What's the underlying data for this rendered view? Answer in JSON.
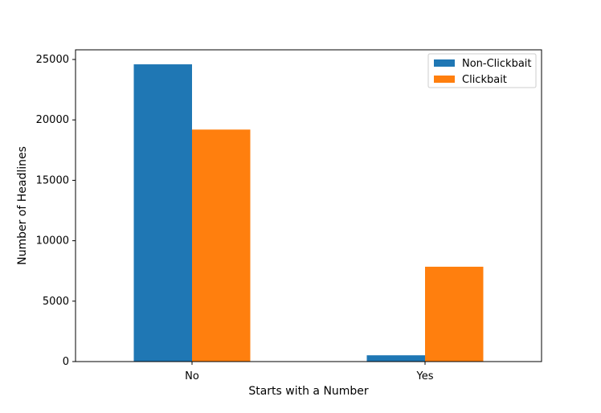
{
  "chart_data": {
    "type": "bar",
    "title": "",
    "xlabel": "Starts with a Number",
    "ylabel": "Number of Headlines",
    "categories": [
      "No",
      "Yes"
    ],
    "series": [
      {
        "name": "Non-Clickbait",
        "color": "#1f77b4",
        "values": [
          24600,
          520
        ]
      },
      {
        "name": "Clickbait",
        "color": "#ff7f0e",
        "values": [
          19200,
          7850
        ]
      }
    ],
    "ylim": [
      0,
      25800
    ],
    "yticks": [
      0,
      5000,
      10000,
      15000,
      20000,
      25000
    ],
    "grid": false,
    "legend": {
      "position": "top-right"
    }
  }
}
